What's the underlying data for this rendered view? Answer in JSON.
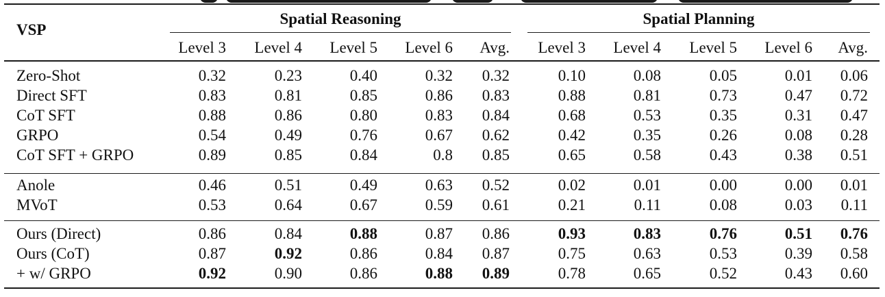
{
  "table": {
    "corner_label": "VSP",
    "groups": [
      "Spatial Reasoning",
      "Spatial Planning"
    ],
    "subheaders": [
      "Level 3",
      "Level 4",
      "Level 5",
      "Level 6",
      "Avg.",
      "Level 3",
      "Level 4",
      "Level 5",
      "Level 6",
      "Avg."
    ],
    "sections": [
      [
        {
          "method": "Zero-Shot",
          "values": [
            "0.32",
            "0.23",
            "0.40",
            "0.32",
            "0.32",
            "0.10",
            "0.08",
            "0.05",
            "0.01",
            "0.06"
          ],
          "bold": []
        },
        {
          "method": "Direct SFT",
          "values": [
            "0.83",
            "0.81",
            "0.85",
            "0.86",
            "0.83",
            "0.88",
            "0.81",
            "0.73",
            "0.47",
            "0.72"
          ],
          "bold": []
        },
        {
          "method": "CoT SFT",
          "values": [
            "0.88",
            "0.86",
            "0.80",
            "0.83",
            "0.84",
            "0.68",
            "0.53",
            "0.35",
            "0.31",
            "0.47"
          ],
          "bold": []
        },
        {
          "method": "GRPO",
          "values": [
            "0.54",
            "0.49",
            "0.76",
            "0.67",
            "0.62",
            "0.42",
            "0.35",
            "0.26",
            "0.08",
            "0.28"
          ],
          "bold": []
        },
        {
          "method": "CoT SFT + GRPO",
          "values": [
            "0.89",
            "0.85",
            "0.84",
            "0.8",
            "0.85",
            "0.65",
            "0.58",
            "0.43",
            "0.38",
            "0.51"
          ],
          "bold": []
        }
      ],
      [
        {
          "method": "Anole",
          "values": [
            "0.46",
            "0.51",
            "0.49",
            "0.63",
            "0.52",
            "0.02",
            "0.01",
            "0.00",
            "0.00",
            "0.01"
          ],
          "bold": []
        },
        {
          "method": "MVoT",
          "values": [
            "0.53",
            "0.64",
            "0.67",
            "0.59",
            "0.61",
            "0.21",
            "0.11",
            "0.08",
            "0.03",
            "0.11"
          ],
          "bold": []
        }
      ],
      [
        {
          "method": "Ours (Direct)",
          "values": [
            "0.86",
            "0.84",
            "0.88",
            "0.87",
            "0.86",
            "0.93",
            "0.83",
            "0.76",
            "0.51",
            "0.76"
          ],
          "bold": [
            2,
            5,
            6,
            7,
            8,
            9
          ]
        },
        {
          "method": "Ours (CoT)",
          "values": [
            "0.87",
            "0.92",
            "0.86",
            "0.84",
            "0.87",
            "0.75",
            "0.63",
            "0.53",
            "0.39",
            "0.58"
          ],
          "bold": [
            1
          ]
        },
        {
          "method": "+ w/ GRPO",
          "values": [
            "0.92",
            "0.90",
            "0.86",
            "0.88",
            "0.89",
            "0.78",
            "0.65",
            "0.52",
            "0.43",
            "0.60"
          ],
          "bold": [
            0,
            3,
            4
          ]
        }
      ]
    ]
  }
}
